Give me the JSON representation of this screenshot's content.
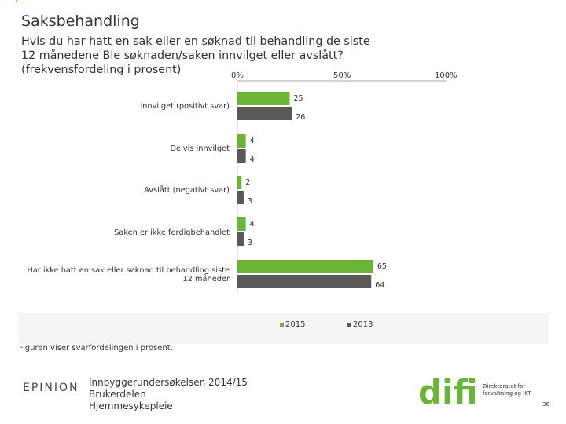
{
  "page": {
    "title": "Saksbehandling",
    "question_lines": [
      "Hvis du har hatt en sak eller en søknad til behandling de siste",
      "12 månedene Ble søknaden/saken innvilget eller avslått?",
      "(frekvensfordeling i prosent)"
    ],
    "caption": "Figuren viser svarfordelingen i prosent.",
    "page_number": "36"
  },
  "footer": {
    "company": "EPINION",
    "lines": [
      "Innbyggerundersøkelsen 2014/15",
      "Brukerdelen",
      "Hjemmesykepleie"
    ],
    "logo_word": "difi",
    "logo_text_lines": [
      "Direktoratet for",
      "forvaltning og IKT"
    ]
  },
  "colors": {
    "series_2015": "#6ab437",
    "series_2013": "#595959",
    "accent": "#e8a000"
  },
  "chart_data": {
    "type": "bar",
    "orientation": "horizontal",
    "title": "",
    "xlabel": "",
    "ylabel": "",
    "xlim": [
      0,
      100
    ],
    "tick_labels": [
      "0%",
      "50%",
      "100%"
    ],
    "categories": [
      [
        "Innvilget (positivt svar)"
      ],
      [
        "Delvis innvilget"
      ],
      [
        "Avslått (negativt svar)"
      ],
      [
        "Saken er ikke ferdigbehandlet"
      ],
      [
        "Har ikke hatt en sak eller søknad til behandling siste",
        "12 måneder"
      ]
    ],
    "series": [
      {
        "name": "2015",
        "values": [
          25,
          4,
          2,
          4,
          65
        ],
        "labels": [
          "25",
          "4",
          "2",
          "4",
          "65"
        ]
      },
      {
        "name": "2013",
        "values": [
          26,
          4,
          3,
          3,
          64
        ],
        "labels": [
          "26",
          "4",
          "3",
          "3",
          "64"
        ]
      }
    ],
    "legend_position": "bottom"
  }
}
